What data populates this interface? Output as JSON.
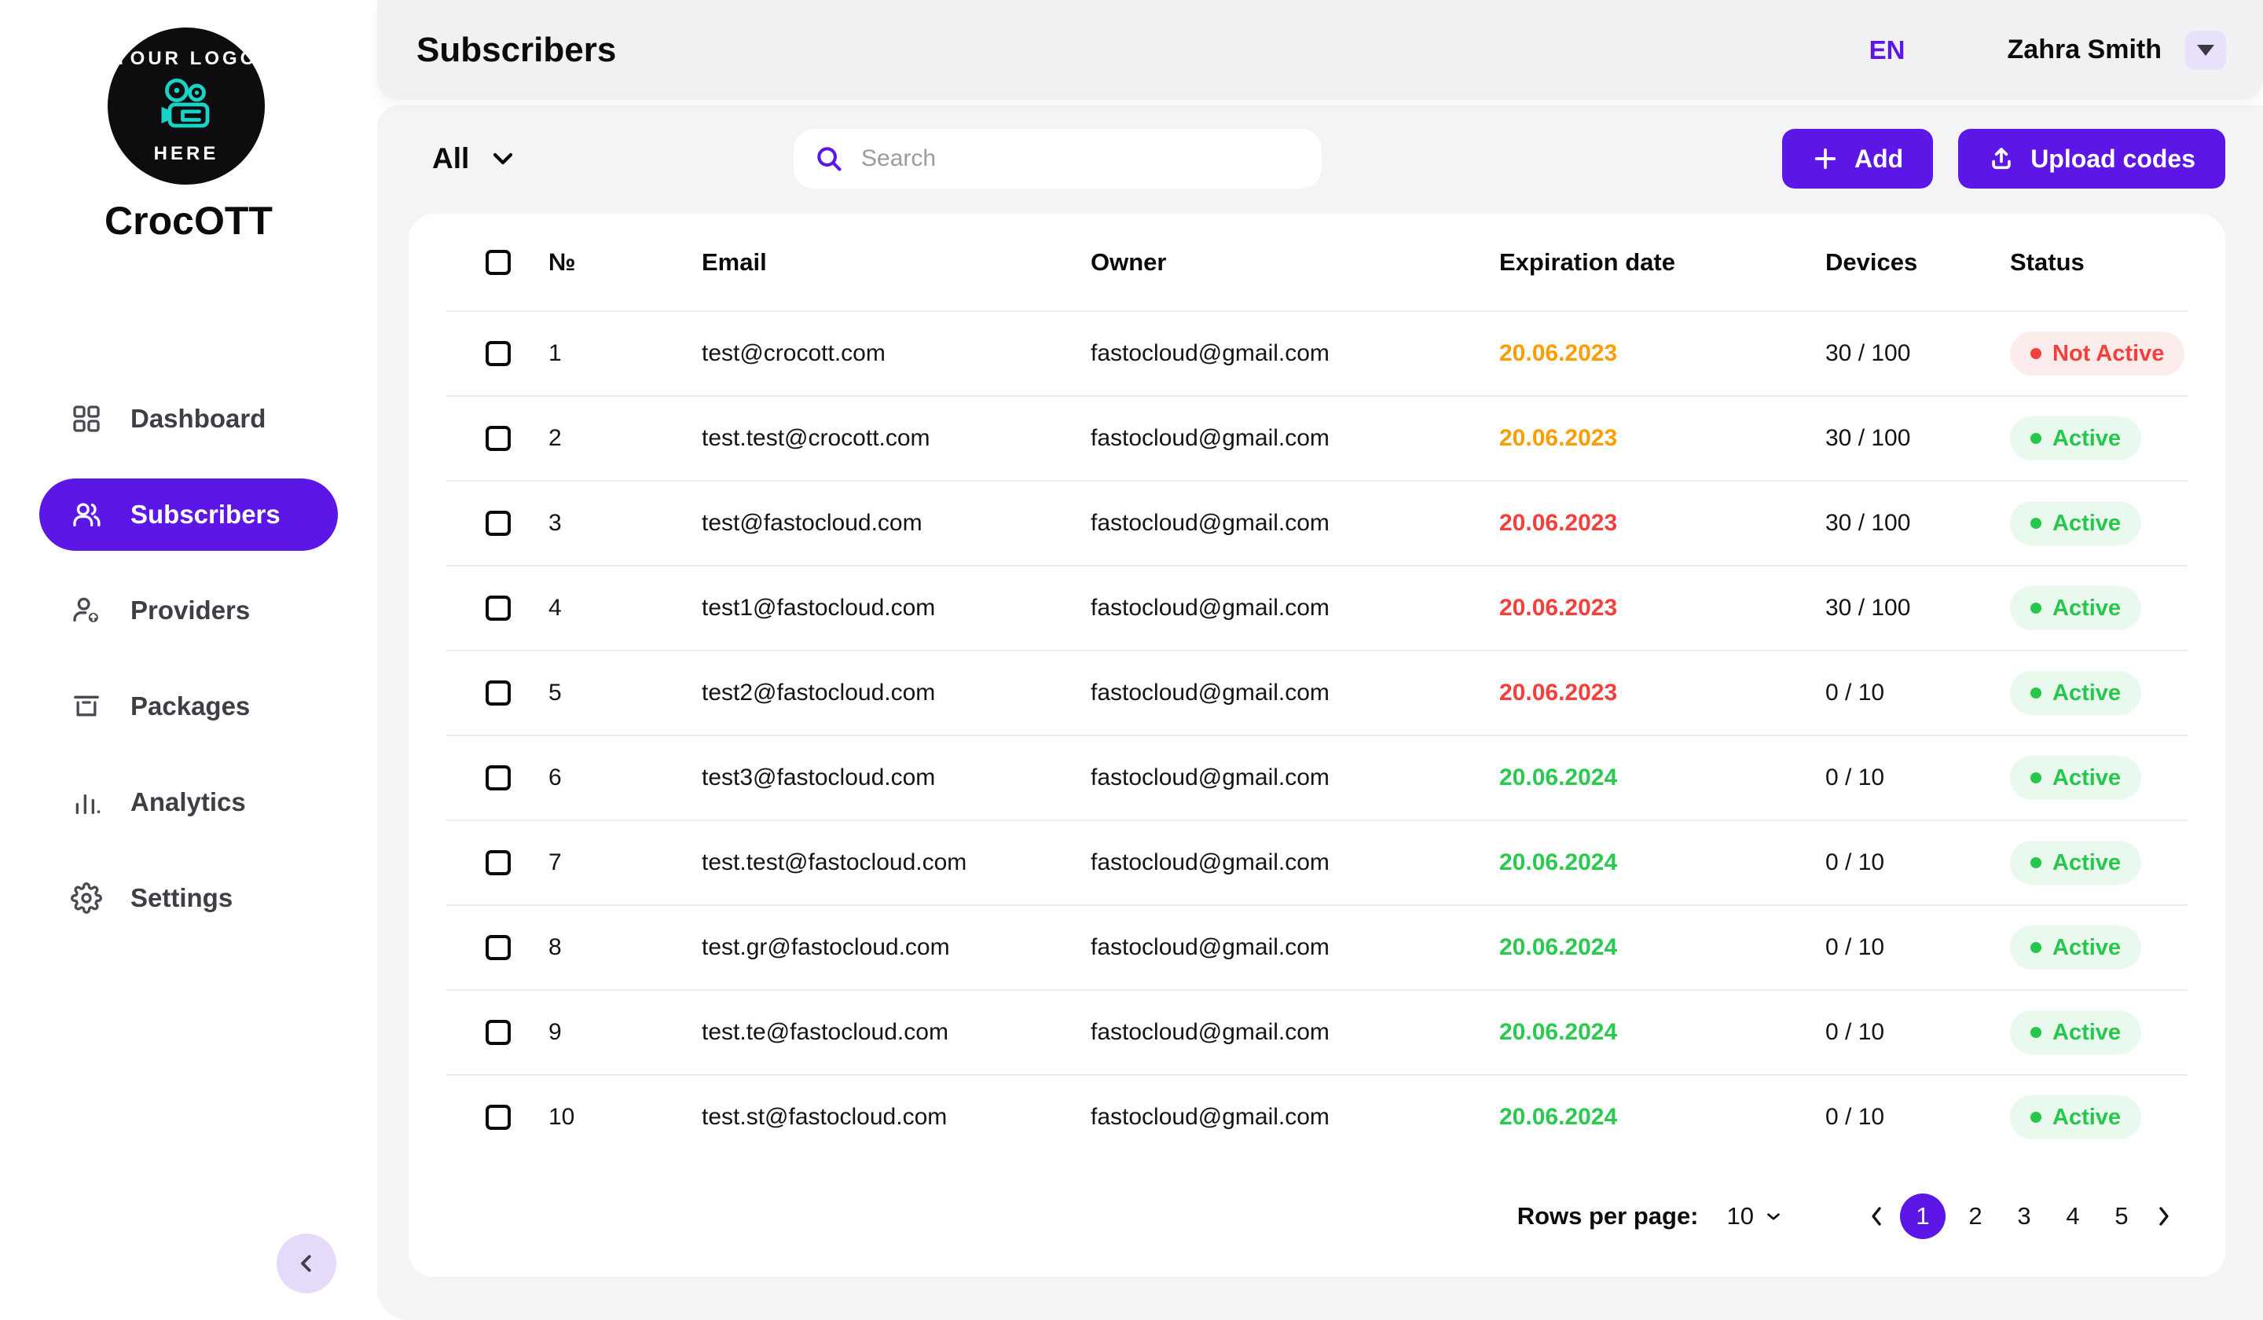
{
  "sidebar": {
    "logo_line1": "YOUR LOGO",
    "logo_line2": "HERE",
    "brand": "CrocOTT",
    "items": [
      {
        "label": "Dashboard",
        "active": false
      },
      {
        "label": "Subscribers",
        "active": true
      },
      {
        "label": "Providers",
        "active": false
      },
      {
        "label": "Packages",
        "active": false
      },
      {
        "label": "Analytics",
        "active": false
      },
      {
        "label": "Settings",
        "active": false
      }
    ]
  },
  "topbar": {
    "title": "Subscribers",
    "language": "EN",
    "user_name": "Zahra Smith"
  },
  "toolbar": {
    "filter_label": "All",
    "search_placeholder": "Search",
    "add_label": "Add",
    "upload_label": "Upload codes"
  },
  "table": {
    "columns": [
      "№",
      "Email",
      "Owner",
      "Expiration date",
      "Devices",
      "Status"
    ],
    "rows": [
      {
        "num": "1",
        "email": "test@crocott.com",
        "owner": "fastocloud@gmail.com",
        "expiration": "20.06.2023",
        "expiration_color": "orange",
        "devices": "30 / 100",
        "status": "Not Active",
        "status_type": "inactive"
      },
      {
        "num": "2",
        "email": "test.test@crocott.com",
        "owner": "fastocloud@gmail.com",
        "expiration": "20.06.2023",
        "expiration_color": "orange",
        "devices": "30 / 100",
        "status": "Active",
        "status_type": "active"
      },
      {
        "num": "3",
        "email": "test@fastocloud.com",
        "owner": "fastocloud@gmail.com",
        "expiration": "20.06.2023",
        "expiration_color": "red",
        "devices": "30 / 100",
        "status": "Active",
        "status_type": "active"
      },
      {
        "num": "4",
        "email": "test1@fastocloud.com",
        "owner": "fastocloud@gmail.com",
        "expiration": "20.06.2023",
        "expiration_color": "red",
        "devices": "30 / 100",
        "status": "Active",
        "status_type": "active"
      },
      {
        "num": "5",
        "email": "test2@fastocloud.com",
        "owner": "fastocloud@gmail.com",
        "expiration": "20.06.2023",
        "expiration_color": "red",
        "devices": "0 / 10",
        "status": "Active",
        "status_type": "active"
      },
      {
        "num": "6",
        "email": "test3@fastocloud.com",
        "owner": "fastocloud@gmail.com",
        "expiration": "20.06.2024",
        "expiration_color": "green",
        "devices": "0 / 10",
        "status": "Active",
        "status_type": "active"
      },
      {
        "num": "7",
        "email": "test.test@fastocloud.com",
        "owner": "fastocloud@gmail.com",
        "expiration": "20.06.2024",
        "expiration_color": "green",
        "devices": "0 / 10",
        "status": "Active",
        "status_type": "active"
      },
      {
        "num": "8",
        "email": "test.gr@fastocloud.com",
        "owner": "fastocloud@gmail.com",
        "expiration": "20.06.2024",
        "expiration_color": "green",
        "devices": "0 / 10",
        "status": "Active",
        "status_type": "active"
      },
      {
        "num": "9",
        "email": "test.te@fastocloud.com",
        "owner": "fastocloud@gmail.com",
        "expiration": "20.06.2024",
        "expiration_color": "green",
        "devices": "0 / 10",
        "status": "Active",
        "status_type": "active"
      },
      {
        "num": "10",
        "email": "test.st@fastocloud.com",
        "owner": "fastocloud@gmail.com",
        "expiration": "20.06.2024",
        "expiration_color": "green",
        "devices": "0 / 10",
        "status": "Active",
        "status_type": "active"
      }
    ]
  },
  "pagination": {
    "rows_per_page_label": "Rows per page:",
    "rows_per_page": "10",
    "pages": [
      "1",
      "2",
      "3",
      "4",
      "5"
    ],
    "active_page": "1"
  },
  "colors": {
    "primary": "#5c17e6",
    "date_orange": "#fb9e04",
    "date_red": "#f4403d",
    "date_green": "#2bc94f",
    "status_active": "#27c64d",
    "status_inactive": "#f4403d"
  }
}
